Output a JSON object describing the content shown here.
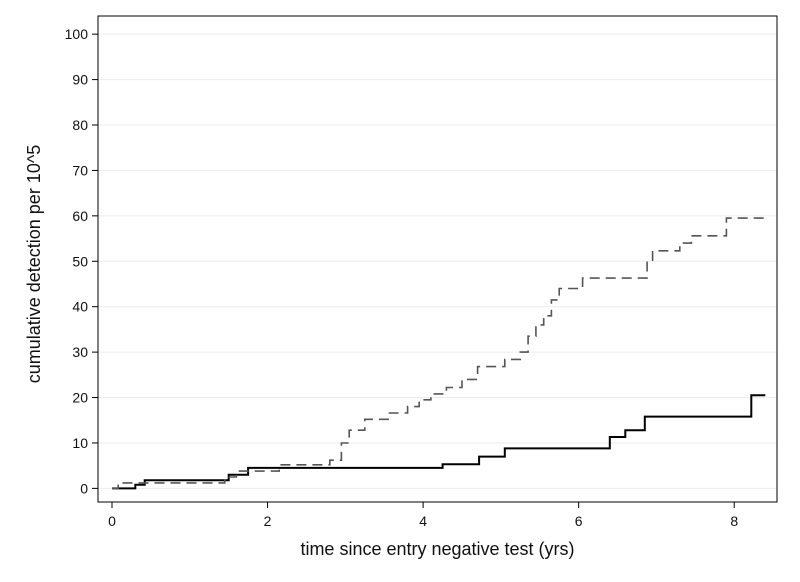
{
  "chart_data": {
    "type": "line",
    "xlabel": "time since entry negative test (yrs)",
    "ylabel": "cumulative detection per 10^5",
    "xlim": [
      -0.18,
      8.55
    ],
    "ylim": [
      -3,
      104
    ],
    "x_ticks": [
      0,
      2,
      4,
      6,
      8
    ],
    "y_ticks": [
      0,
      10,
      20,
      30,
      40,
      50,
      60,
      70,
      80,
      90,
      100
    ],
    "grid": true,
    "legend": "none",
    "series": [
      {
        "style": "solid",
        "color": "#000000",
        "step": true,
        "points": [
          [
            0.0,
            0
          ],
          [
            0.3,
            0.8
          ],
          [
            0.42,
            1.8
          ],
          [
            1.5,
            3.0
          ],
          [
            1.75,
            4.5
          ],
          [
            4.25,
            5.3
          ],
          [
            4.72,
            7.0
          ],
          [
            5.05,
            8.8
          ],
          [
            6.4,
            11.3
          ],
          [
            6.6,
            12.8
          ],
          [
            6.85,
            15.8
          ],
          [
            8.22,
            20.5
          ],
          [
            8.4,
            20.5
          ]
        ]
      },
      {
        "style": "dashed",
        "color": "#555555",
        "step": true,
        "points": [
          [
            0.0,
            0
          ],
          [
            0.08,
            1.2
          ],
          [
            1.45,
            2.5
          ],
          [
            1.6,
            3.8
          ],
          [
            2.15,
            5.2
          ],
          [
            2.8,
            6.2
          ],
          [
            2.95,
            10.0
          ],
          [
            3.05,
            12.8
          ],
          [
            3.25,
            15.2
          ],
          [
            3.55,
            16.6
          ],
          [
            3.8,
            18.0
          ],
          [
            3.95,
            19.5
          ],
          [
            4.1,
            20.8
          ],
          [
            4.3,
            22.2
          ],
          [
            4.5,
            24.0
          ],
          [
            4.7,
            26.8
          ],
          [
            5.05,
            28.4
          ],
          [
            5.25,
            30.0
          ],
          [
            5.35,
            33.5
          ],
          [
            5.45,
            36.0
          ],
          [
            5.55,
            38.0
          ],
          [
            5.65,
            41.5
          ],
          [
            5.75,
            44.0
          ],
          [
            6.05,
            46.3
          ],
          [
            6.88,
            50.0
          ],
          [
            6.95,
            52.3
          ],
          [
            7.3,
            54.0
          ],
          [
            7.45,
            55.6
          ],
          [
            7.9,
            59.5
          ],
          [
            8.4,
            59.5
          ]
        ]
      }
    ]
  }
}
